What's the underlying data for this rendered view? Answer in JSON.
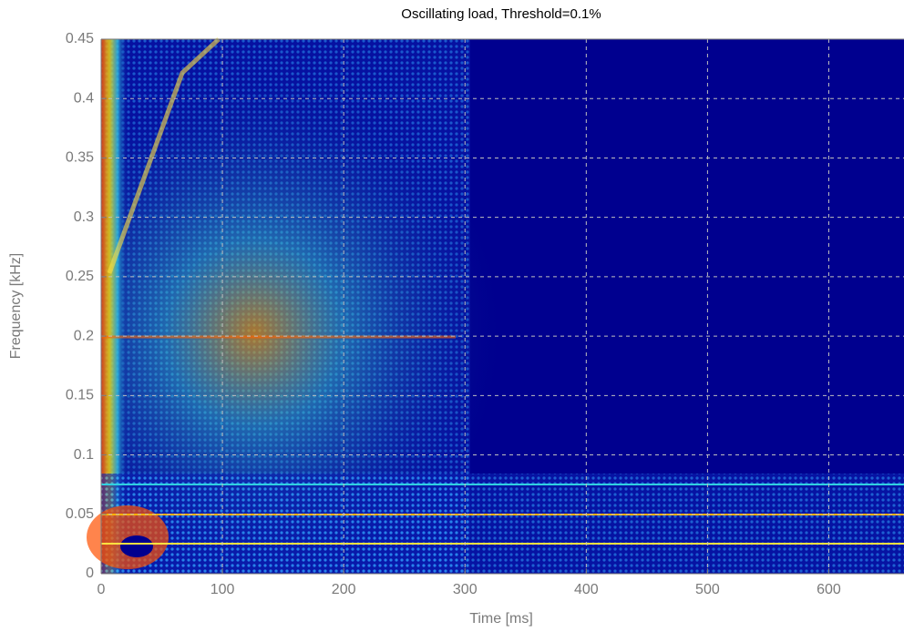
{
  "chart_data": {
    "type": "heatmap",
    "title": "Oscillating load, Threshold=0.1%",
    "x_label": "Time [ms]",
    "y_label": "Frequency [kHz]",
    "xlim": [
      0,
      662
    ],
    "ylim": [
      0,
      0.45
    ],
    "xticks": [
      0,
      100,
      200,
      300,
      400,
      500,
      600
    ],
    "yticks": [
      0,
      0.05,
      0.1,
      0.15,
      0.2,
      0.25,
      0.3,
      0.35,
      0.4,
      0.45
    ],
    "grid": true
  }
}
